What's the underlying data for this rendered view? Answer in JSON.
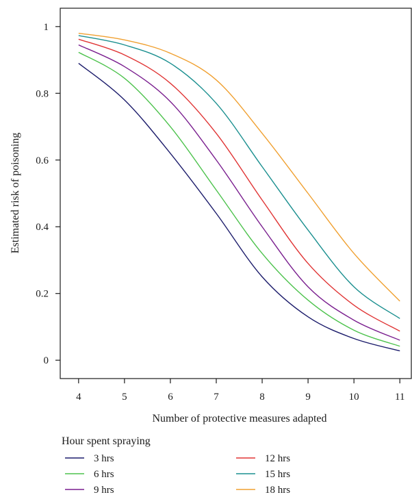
{
  "chart_data": {
    "type": "line",
    "xlabel": "Number of protective measures adapted",
    "ylabel": "Estimated risk of poisoning",
    "xlim": [
      3.6,
      11.25
    ],
    "ylim": [
      -0.055,
      1.055
    ],
    "xticks": [
      4,
      5,
      6,
      7,
      8,
      9,
      10,
      11
    ],
    "xtick_labels": [
      "4",
      "5",
      "6",
      "7",
      "8",
      "9",
      "10",
      "11"
    ],
    "yticks": [
      0,
      0.2,
      0.4,
      0.6,
      0.8,
      1
    ],
    "ytick_labels": [
      "0",
      "0.2",
      "0.4",
      "0.6",
      "0.8",
      "1"
    ],
    "grid": false,
    "legend_title": "Hour spent spraying",
    "legend_position": "bottom",
    "x": [
      4,
      5,
      6,
      7,
      8,
      9,
      10,
      11
    ],
    "series": [
      {
        "name": "3 hrs",
        "color": "#1c1c6b",
        "values": [
          0.89,
          0.78,
          0.62,
          0.44,
          0.25,
          0.13,
          0.065,
          0.028
        ]
      },
      {
        "name": "6 hrs",
        "color": "#4cc24c",
        "values": [
          0.923,
          0.845,
          0.7,
          0.51,
          0.32,
          0.18,
          0.09,
          0.042
        ]
      },
      {
        "name": "9 hrs",
        "color": "#7a1f8f",
        "values": [
          0.945,
          0.88,
          0.775,
          0.6,
          0.4,
          0.22,
          0.12,
          0.06
        ]
      },
      {
        "name": "12 hrs",
        "color": "#e03434",
        "values": [
          0.962,
          0.915,
          0.83,
          0.68,
          0.48,
          0.29,
          0.165,
          0.087
        ]
      },
      {
        "name": "15 hrs",
        "color": "#1a8f8f",
        "values": [
          0.973,
          0.945,
          0.89,
          0.77,
          0.58,
          0.39,
          0.22,
          0.125
        ]
      },
      {
        "name": "18 hrs",
        "color": "#f0a030",
        "values": [
          0.98,
          0.96,
          0.92,
          0.84,
          0.68,
          0.5,
          0.32,
          0.177
        ]
      }
    ]
  }
}
